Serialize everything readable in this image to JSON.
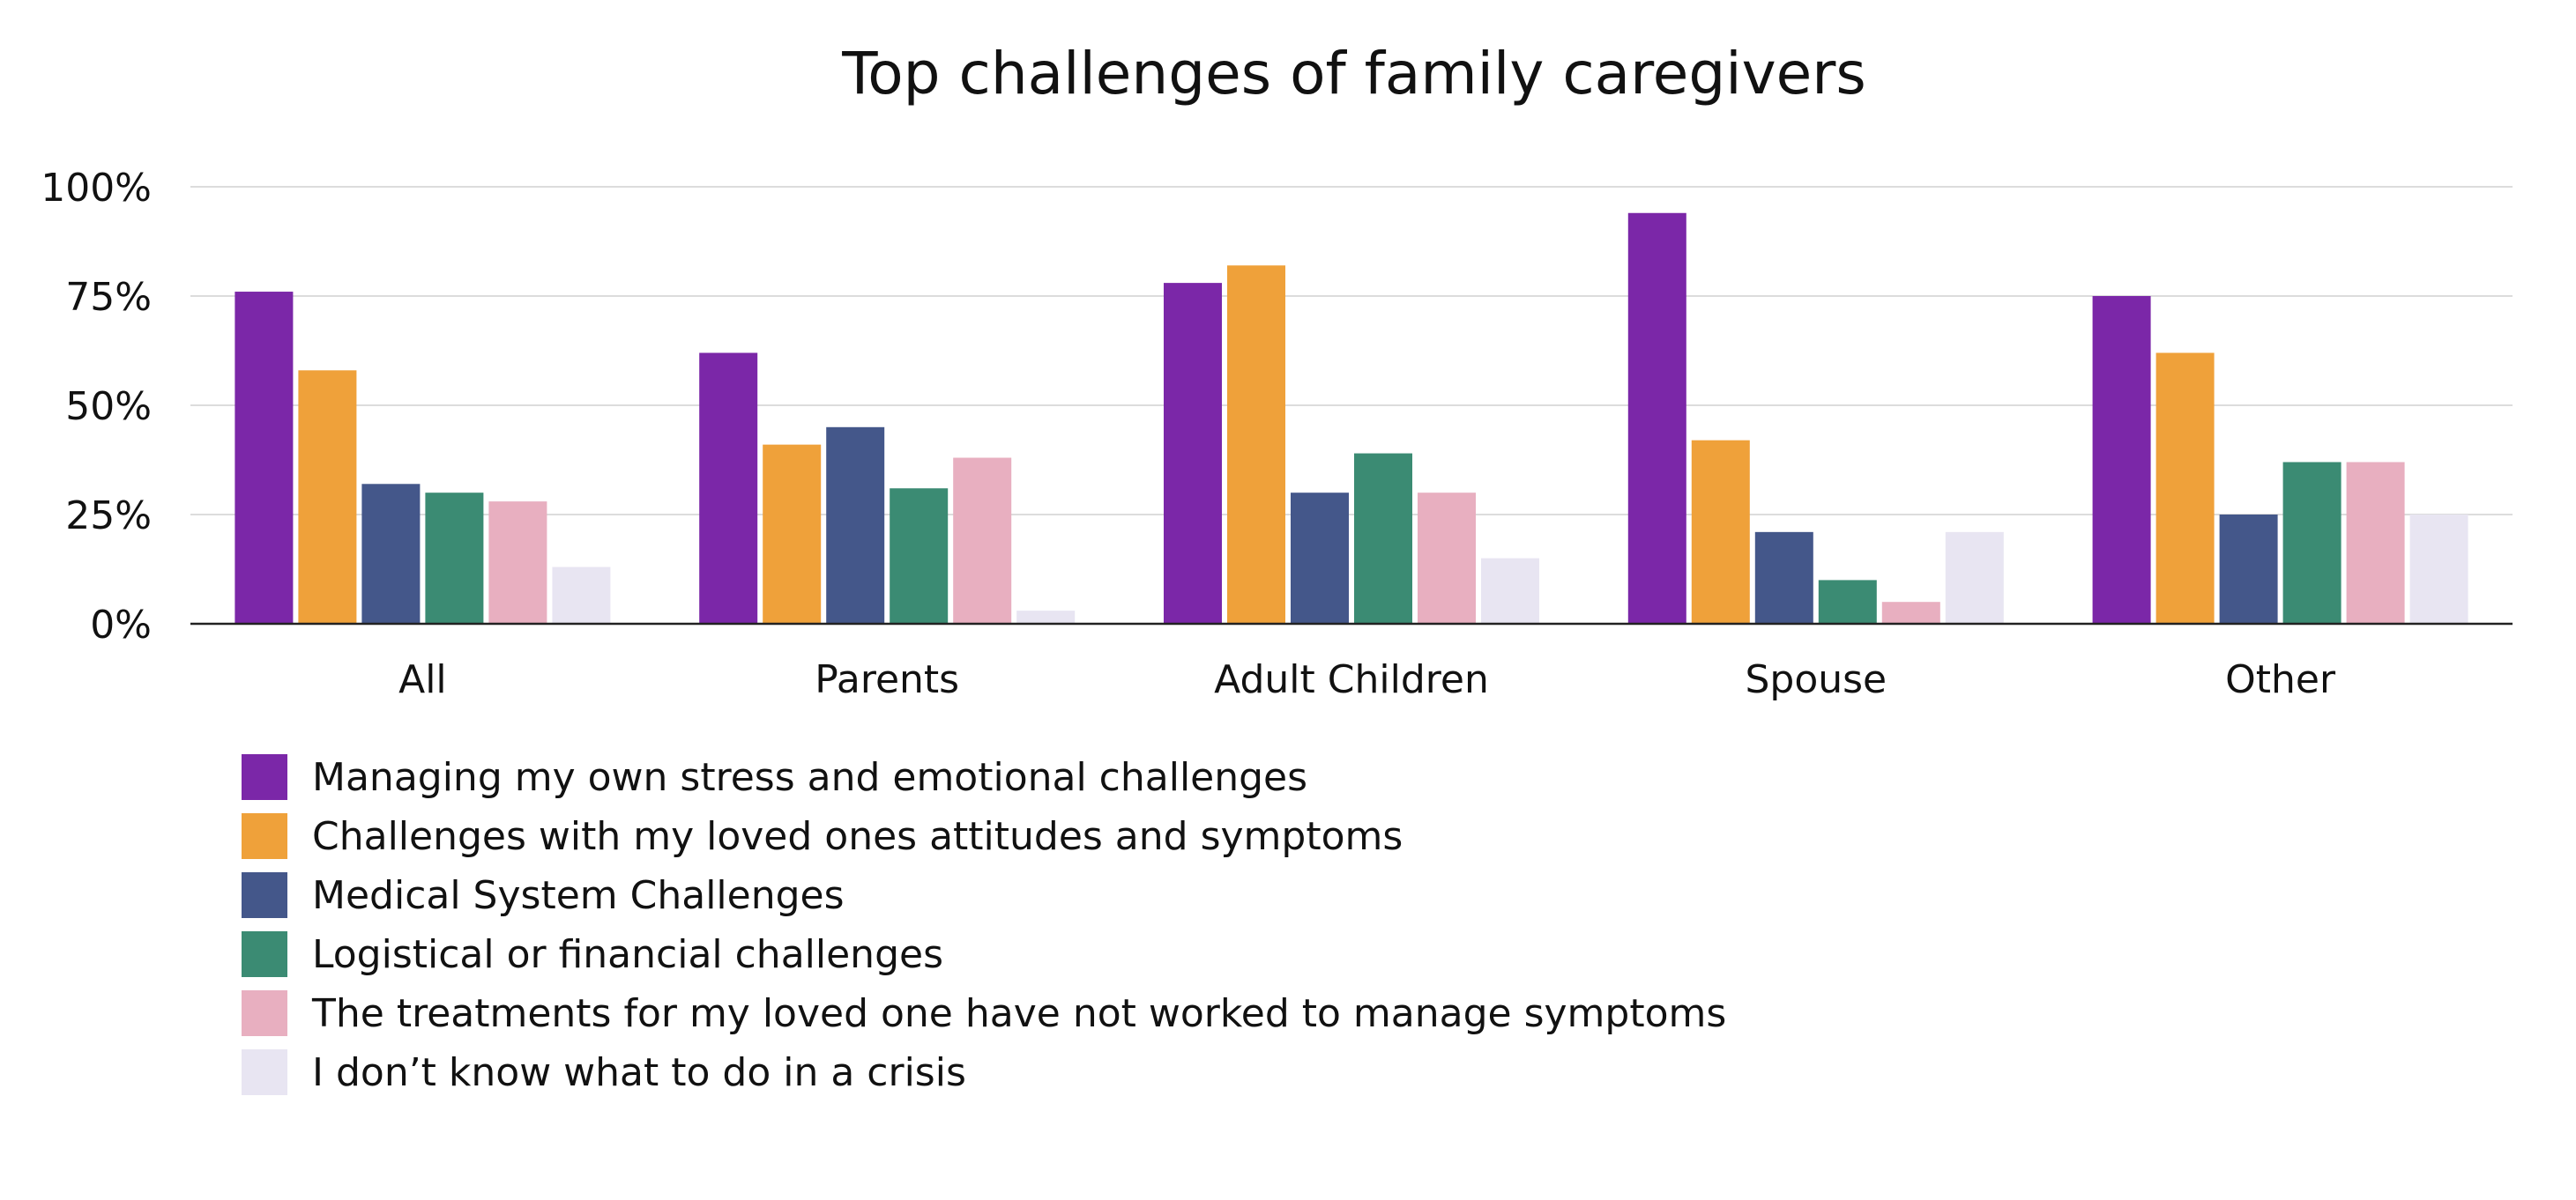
{
  "chart_data": {
    "type": "bar",
    "title": "Top challenges of family caregivers",
    "xlabel": "",
    "ylabel": "",
    "ylim": [
      0,
      100
    ],
    "yticks": [
      0,
      25,
      50,
      75,
      100
    ],
    "ytick_labels": [
      "0%",
      "25%",
      "50%",
      "75%",
      "100%"
    ],
    "grid": true,
    "legend_position": "bottom-left",
    "categories": [
      "All",
      "Parents",
      "Adult Children",
      "Spouse",
      "Other"
    ],
    "series": [
      {
        "name": "Managing my own stress and emotional challenges",
        "color": "#7b27a8",
        "values": [
          76,
          62,
          78,
          94,
          75
        ]
      },
      {
        "name": "Challenges with my loved ones attitudes and symptoms",
        "color": "#efa13a",
        "values": [
          58,
          41,
          82,
          42,
          62
        ]
      },
      {
        "name": "Medical System Challenges",
        "color": "#44578a",
        "values": [
          32,
          45,
          30,
          21,
          25
        ]
      },
      {
        "name": "Logistical or financial challenges",
        "color": "#3b8b73",
        "values": [
          30,
          31,
          39,
          10,
          37
        ]
      },
      {
        "name": "The treatments for my loved one have not worked to manage symptoms",
        "color": "#e8afc0",
        "values": [
          28,
          38,
          30,
          5,
          37
        ]
      },
      {
        "name": "I don’t know what to do in a crisis",
        "color": "#e8e5f2",
        "values": [
          13,
          3,
          15,
          21,
          25
        ]
      }
    ]
  }
}
